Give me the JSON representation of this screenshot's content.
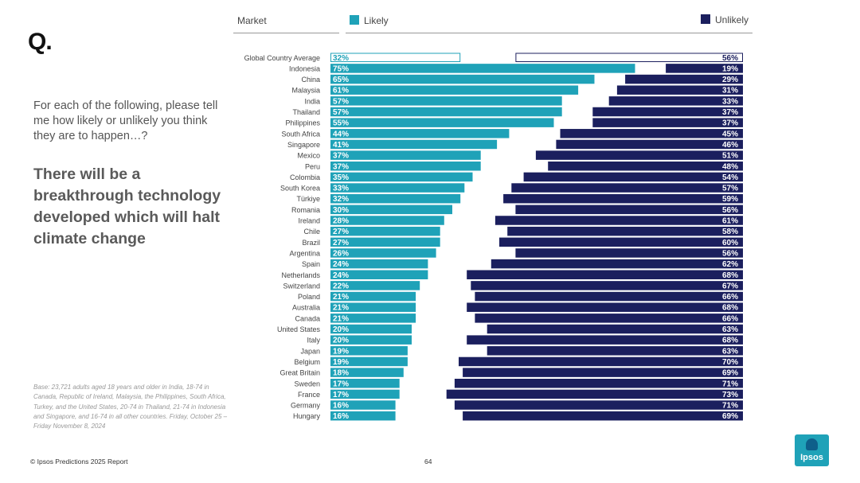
{
  "slide": {
    "q_mark": "Q.",
    "question": "For each of the following, please tell me how likely or unlikely you think they are to happen…?",
    "statement": "There will be a breakthrough technology developed which will halt climate change",
    "base_note": "Base: 23,721 adults aged 18 years and older in India, 18-74 in Canada, Republic of Ireland, Malaysia, the Philippines, South Africa, Turkey, and the United States, 20-74 in Thailand, 21-74 in Indonesia and Singapore, and 16-74 in all other countries. Friday, October 25 – Friday November 8, 2024",
    "footer": "© Ipsos Predictions 2025 Report",
    "page_number": "64",
    "logo_text": "Ipsos"
  },
  "colors": {
    "likely": "#1fa2b8",
    "unlikely": "#1b1f5e",
    "label_text": "#444444"
  },
  "chart_data": {
    "type": "bar",
    "title": "",
    "column_header": "Market",
    "categories": [
      "Global Country Average",
      "Indonesia",
      "China",
      "Malaysia",
      "India",
      "Thailand",
      "Philippines",
      "South Africa",
      "Singapore",
      "Mexico",
      "Peru",
      "Colombia",
      "South Korea",
      "Türkiye",
      "Romania",
      "Ireland",
      "Chile",
      "Brazil",
      "Argentina",
      "Spain",
      "Netherlands",
      "Switzerland",
      "Poland",
      "Australia",
      "Canada",
      "United States",
      "Italy",
      "Japan",
      "Belgium",
      "Great Britain",
      "Sweden",
      "France",
      "Germany",
      "Hungary"
    ],
    "series": [
      {
        "name": "Likely",
        "values": [
          32,
          75,
          65,
          61,
          57,
          57,
          55,
          44,
          41,
          37,
          37,
          35,
          33,
          32,
          30,
          28,
          27,
          27,
          26,
          24,
          24,
          22,
          21,
          21,
          21,
          20,
          20,
          19,
          19,
          18,
          17,
          17,
          16,
          16
        ]
      },
      {
        "name": "Unlikely",
        "values": [
          56,
          19,
          29,
          31,
          33,
          37,
          37,
          45,
          46,
          51,
          48,
          54,
          57,
          59,
          56,
          61,
          58,
          60,
          56,
          62,
          68,
          67,
          66,
          68,
          66,
          63,
          68,
          63,
          70,
          69,
          71,
          73,
          71,
          69
        ]
      }
    ],
    "value_suffix": "%",
    "highlight_category": "Global Country Average",
    "legend": [
      "Likely",
      "Unlikely"
    ],
    "legend_position": "top"
  }
}
